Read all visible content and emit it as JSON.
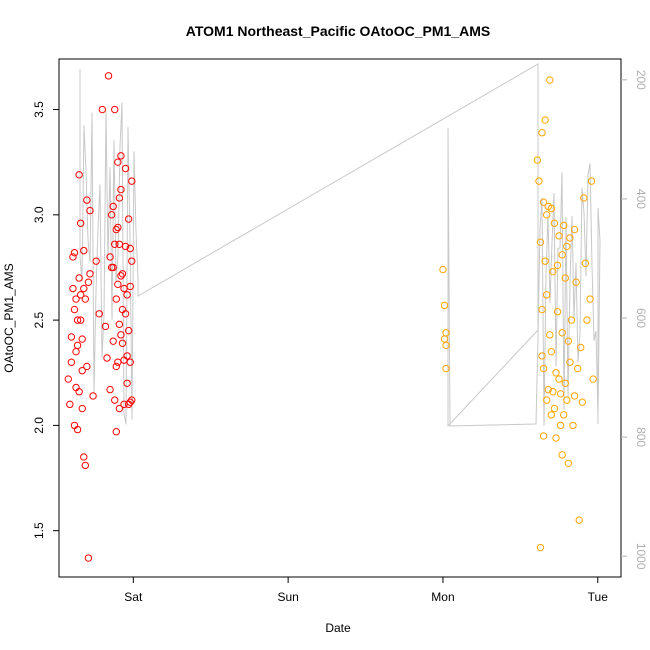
{
  "chart_data": {
    "type": "scatter",
    "title": "ATOM1 Northeast_Pacific OAtoOC_PM1_AMS",
    "xlabel": "Date",
    "ylabel": "OAtoOC_PM1_AMS",
    "x_ticks": [
      {
        "label": "Sat",
        "value": 1.0
      },
      {
        "label": "Sun",
        "value": 2.0
      },
      {
        "label": "Mon",
        "value": 3.0
      },
      {
        "label": "Tue",
        "value": 4.0
      }
    ],
    "xlim": [
      0.52,
      4.15
    ],
    "ylim": [
      1.28,
      3.74
    ],
    "y_ticks": [
      1.5,
      2.0,
      2.5,
      3.0,
      3.5
    ],
    "secondary_axis": {
      "ticks": [
        200,
        400,
        600,
        800,
        1000
      ],
      "ylim": [
        1035,
        165
      ],
      "color": "#b0b0b0"
    },
    "grid": false,
    "series": [
      {
        "color": "#ff0000",
        "marker": "open-circle",
        "x": [
          0.58,
          0.59,
          0.6,
          0.6,
          0.61,
          0.61,
          0.62,
          0.62,
          0.62,
          0.63,
          0.63,
          0.63,
          0.64,
          0.64,
          0.64,
          0.65,
          0.65,
          0.65,
          0.66,
          0.66,
          0.66,
          0.67,
          0.67,
          0.67,
          0.68,
          0.68,
          0.68,
          0.69,
          0.69,
          0.7,
          0.7,
          0.71,
          0.71,
          0.72,
          0.72,
          0.74,
          0.76,
          0.78,
          0.8,
          0.82,
          0.83,
          0.84,
          0.85,
          0.85,
          0.86,
          0.86,
          0.87,
          0.87,
          0.87,
          0.88,
          0.88,
          0.88,
          0.89,
          0.89,
          0.89,
          0.89,
          0.9,
          0.9,
          0.9,
          0.9,
          0.91,
          0.91,
          0.91,
          0.91,
          0.92,
          0.92,
          0.92,
          0.92,
          0.93,
          0.93,
          0.93,
          0.94,
          0.94,
          0.94,
          0.95,
          0.95,
          0.95,
          0.96,
          0.96,
          0.96,
          0.97,
          0.97,
          0.97,
          0.98,
          0.98,
          0.98,
          0.98,
          0.99,
          0.99,
          0.99
        ],
        "y": [
          2.22,
          2.1,
          2.42,
          2.3,
          2.8,
          2.65,
          2.55,
          2.0,
          2.82,
          2.6,
          2.35,
          2.18,
          2.5,
          2.38,
          1.98,
          3.19,
          2.7,
          2.16,
          2.96,
          2.62,
          2.5,
          2.41,
          2.26,
          2.08,
          2.83,
          2.65,
          1.85,
          1.81,
          2.6,
          3.07,
          2.28,
          2.68,
          1.37,
          2.72,
          3.02,
          2.14,
          2.78,
          2.53,
          3.5,
          2.47,
          2.32,
          3.66,
          2.17,
          2.8,
          2.75,
          3.0,
          2.75,
          3.04,
          2.4,
          2.86,
          2.12,
          3.5,
          2.6,
          2.28,
          2.93,
          1.97,
          2.94,
          2.3,
          2.67,
          3.25,
          3.08,
          2.48,
          2.86,
          2.08,
          3.28,
          2.71,
          2.43,
          3.12,
          2.72,
          2.55,
          2.39,
          2.65,
          2.1,
          2.31,
          2.85,
          3.22,
          2.53,
          2.33,
          2.62,
          2.2,
          2.98,
          2.45,
          2.1,
          2.66,
          2.3,
          2.84,
          2.11,
          3.16,
          2.78,
          2.12
        ]
      },
      {
        "color": "#ffa500",
        "marker": "open-circle",
        "x": [
          3.0,
          3.01,
          3.01,
          3.02,
          3.02,
          3.02,
          3.61,
          3.62,
          3.63,
          3.63,
          3.64,
          3.64,
          3.64,
          3.65,
          3.65,
          3.65,
          3.66,
          3.66,
          3.67,
          3.67,
          3.67,
          3.68,
          3.68,
          3.69,
          3.69,
          3.7,
          3.7,
          3.7,
          3.71,
          3.71,
          3.72,
          3.72,
          3.73,
          3.73,
          3.74,
          3.74,
          3.75,
          3.75,
          3.76,
          3.76,
          3.77,
          3.77,
          3.77,
          3.78,
          3.78,
          3.79,
          3.79,
          3.8,
          3.8,
          3.81,
          3.81,
          3.82,
          3.82,
          3.83,
          3.84,
          3.85,
          3.85,
          3.86,
          3.87,
          3.88,
          3.89,
          3.9,
          3.91,
          3.92,
          3.93,
          3.95,
          3.96,
          3.97
        ],
        "y": [
          2.74,
          2.57,
          2.41,
          2.44,
          2.38,
          2.27,
          3.26,
          3.16,
          2.87,
          1.42,
          3.39,
          2.55,
          2.33,
          3.06,
          2.27,
          1.95,
          3.45,
          2.78,
          3.0,
          2.62,
          2.12,
          2.17,
          3.04,
          2.43,
          3.64,
          2.35,
          2.05,
          3.03,
          2.73,
          2.16,
          2.08,
          2.96,
          2.25,
          1.94,
          2.76,
          2.54,
          2.22,
          2.9,
          2.15,
          2.0,
          2.81,
          2.44,
          1.86,
          2.05,
          2.95,
          2.7,
          2.2,
          2.85,
          2.12,
          2.4,
          1.82,
          2.89,
          2.3,
          2.5,
          2.0,
          2.93,
          2.14,
          2.68,
          2.27,
          1.55,
          2.37,
          2.11,
          3.08,
          2.77,
          2.5,
          2.6,
          3.16,
          2.22
        ]
      }
    ]
  }
}
